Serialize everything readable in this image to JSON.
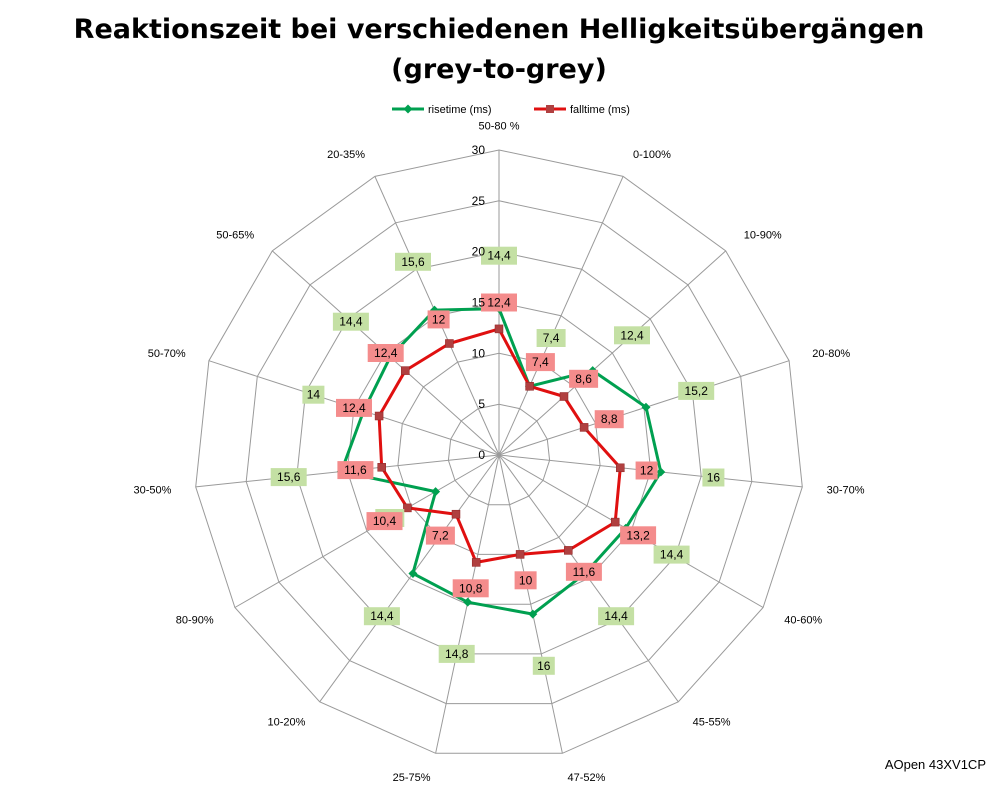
{
  "chart_data": {
    "type": "radar",
    "title": "Reaktionszeit bei verschiedenen Helligkeitsübergängen",
    "subtitle": "(grey-to-grey)",
    "categories": [
      "50-80 %",
      "0-100%",
      "10-90%",
      "20-80%",
      "30-70%",
      "40-60%",
      "45-55%",
      "47-52%",
      "25-75%",
      "10-20%",
      "80-90%",
      "30-50%",
      "50-70%",
      "50-65%",
      "20-35%"
    ],
    "series": [
      {
        "name": "risetime (ms)",
        "color": "#00a050",
        "label_bg": "#c4e0a4",
        "marker": "diamond",
        "values": [
          14.4,
          7.4,
          12.4,
          15.2,
          16,
          14.4,
          14.4,
          16,
          14.8,
          14.4,
          7.2,
          15.6,
          14,
          14.4,
          15.6
        ]
      },
      {
        "name": "falltime (ms)",
        "color": "#e01010",
        "label_bg": "#f48c8c",
        "marker": "square",
        "values": [
          12.4,
          7.4,
          8.6,
          8.8,
          12,
          13.2,
          11.6,
          10,
          10.8,
          7.2,
          10.4,
          11.6,
          12.4,
          12.4,
          12
        ]
      }
    ],
    "rlim": [
      0,
      30
    ],
    "rticks": [
      0,
      5,
      10,
      15,
      20,
      25,
      30
    ],
    "grid": true,
    "legend": "top"
  },
  "brand": "AOpen 43XV1CP"
}
